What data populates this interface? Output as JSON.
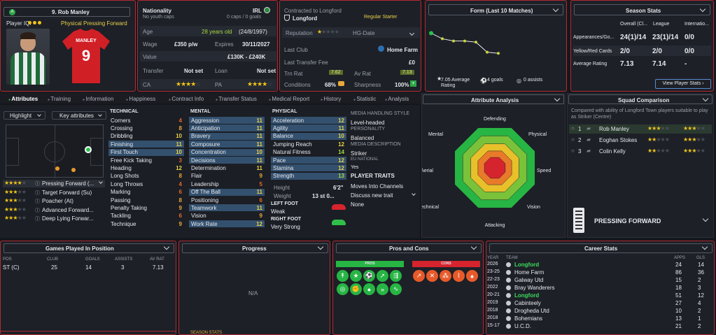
{
  "header": {
    "name": "9. Rob Manley",
    "number": "9",
    "shirt_name": "MANLEY",
    "player_iq": "Player IQ:",
    "role": "Physical Pressing Forward"
  },
  "bio": {
    "nationality_label": "Nationality",
    "nationality": "IRL",
    "caps": "0 caps / 0 goals",
    "youth_caps": "No youth caps",
    "age_label": "Age",
    "age": "28 years old",
    "dob": "(24/8/1997)",
    "wage_label": "Wage",
    "wage": "£350 p/w",
    "expires_label": "Expires",
    "expires": "30/11/2027",
    "value_label": "Value",
    "value": "£130K - £240K",
    "transfer_label": "Transfer",
    "transfer": "Not set",
    "loan_label": "Loan",
    "loan": "Not set",
    "ca_label": "CA",
    "pa_label": "PA"
  },
  "contract": {
    "title": "Contracted to Longford",
    "club": "Longford",
    "status": "Regular Starter",
    "reputation_label": "Reputation",
    "hg_label": "HG-Date",
    "last_club_label": "Last Club",
    "last_club": "Home Farm",
    "fee_label": "Last Transfer Fee",
    "fee": "£0",
    "trn_label": "Trn Rat",
    "trn": "7.62",
    "av_label": "Av Rat",
    "av": "7.13",
    "cond_label": "Conditions",
    "cond": "68%",
    "sharp_label": "Sharpness",
    "sharp": "100%"
  },
  "form": {
    "title": "Form (Last 10 Matches)",
    "avg": "7.05 Average Rating",
    "goals": "4 goals",
    "assists": "0 assists",
    "ratings": [
      8.1,
      7.6,
      7.4,
      7.4,
      7.3,
      6.4,
      6.3
    ]
  },
  "season": {
    "title": "Season Stats",
    "col1": "Overall (Cl...",
    "col2": "League",
    "col3": "Internatio...",
    "rows": [
      {
        "label": "Appearances/Go...",
        "a": "24(1)/14",
        "b": "23(1)/14",
        "c": "0/0"
      },
      {
        "label": "Yellow/Red Cards",
        "a": "2/0",
        "b": "2/0",
        "c": "0/0"
      },
      {
        "label": "Average Rating",
        "a": "7.13",
        "b": "7.14",
        "c": "-"
      }
    ],
    "button": "View Player Stats"
  },
  "tabs": [
    "Attributes",
    "Training",
    "Information",
    "Happiness",
    "Contract Info",
    "Transfer Status",
    "Medical Report",
    "History",
    "Statistic",
    "Analysis"
  ],
  "filters": {
    "highlight": "Highlight",
    "key": "Key attributes"
  },
  "technical": {
    "title": "TECHNICAL",
    "items": [
      [
        "Corners",
        "4"
      ],
      [
        "Crossing",
        "8"
      ],
      [
        "Dribbling",
        "10"
      ],
      [
        "Finishing",
        "11"
      ],
      [
        "First Touch",
        "10"
      ],
      [
        "Free Kick Taking",
        "3"
      ],
      [
        "Heading",
        "12"
      ],
      [
        "Long Shots",
        "8"
      ],
      [
        "Long Throws",
        "4"
      ],
      [
        "Marking",
        "6"
      ],
      [
        "Passing",
        "8"
      ],
      [
        "Penalty Taking",
        "9"
      ],
      [
        "Tackling",
        "6"
      ],
      [
        "Technique",
        "9"
      ]
    ]
  },
  "mental": {
    "title": "MENTAL",
    "items": [
      [
        "Aggression",
        "11"
      ],
      [
        "Anticipation",
        "11"
      ],
      [
        "Bravery",
        "11"
      ],
      [
        "Composure",
        "11"
      ],
      [
        "Concentration",
        "10"
      ],
      [
        "Decisions",
        "11"
      ],
      [
        "Determination",
        "11"
      ],
      [
        "Flair",
        "9"
      ],
      [
        "Leadership",
        "5"
      ],
      [
        "Off The Ball",
        "11"
      ],
      [
        "Positioning",
        "6"
      ],
      [
        "Teamwork",
        "11"
      ],
      [
        "Vision",
        "9"
      ],
      [
        "Work Rate",
        "12"
      ]
    ]
  },
  "physical": {
    "title": "PHYSICAL",
    "items": [
      [
        "Acceleration",
        "12"
      ],
      [
        "Agility",
        "11"
      ],
      [
        "Balance",
        "10"
      ],
      [
        "Jumping Reach",
        "12"
      ],
      [
        "Natural Fitness",
        "14"
      ],
      [
        "Pace",
        "12"
      ],
      [
        "Stamina",
        "12"
      ],
      [
        "Strength",
        "13"
      ]
    ]
  },
  "body": {
    "height_label": "Height",
    "height": "6'2\"",
    "weight_label": "Weight",
    "weight": "13 st 0...",
    "left_foot_label": "LEFT FOOT",
    "left_foot": "Weak",
    "right_foot_label": "RIGHT FOOT",
    "right_foot": "Very Strong"
  },
  "media": {
    "style_label": "MEDIA HANDLING STYLE",
    "style": "Level-headed",
    "personality_label": "PERSONALITY",
    "personality": "Balanced",
    "desc_label": "MEDIA DESCRIPTION",
    "desc": "Striker",
    "eu_label": "EU NATIONAL",
    "eu": "Yes",
    "traits_label": "PLAYER TRAITS",
    "traits": [
      "Moves Into Channels",
      "Discuss new trait",
      "None"
    ]
  },
  "roles": [
    "Pressing Forward (...",
    "Target Forward (Su)",
    "Poacher (At)",
    "Advanced Forward...",
    "Deep Lying Forwar..."
  ],
  "analysis": {
    "title": "Attribute Analysis",
    "labels": [
      "Defending",
      "Physical",
      "Speed",
      "Vision",
      "Attacking",
      "Technical",
      "Aerial",
      "Mental"
    ]
  },
  "squad": {
    "title": "Squad Comparison",
    "desc": "Compared with ability of Longford Town players suitable to play as Striker (Centre)",
    "players": [
      {
        "rank": "1",
        "name": "Rob Manley"
      },
      {
        "rank": "2",
        "name": "Eoghan Stokes"
      },
      {
        "rank": "3",
        "name": "Colin Kelly"
      }
    ],
    "role": "PRESSING FORWARD"
  },
  "games": {
    "title": "Games Played In Position",
    "cols": [
      "POS",
      "CLUB",
      "GOALS",
      "ASSISTS",
      "AV RAT"
    ],
    "row": [
      "ST (C)",
      "25",
      "14",
      "3",
      "7.13"
    ]
  },
  "progress": {
    "title": "Progress",
    "na": "N/A"
  },
  "proscons": {
    "title": "Pros and Cons",
    "pros": "PROS",
    "cons": "CONS"
  },
  "career": {
    "title": "Career Stats",
    "cols": [
      "YEAR",
      "TEAM",
      "APPS",
      "GLS"
    ],
    "rows": [
      [
        "2026",
        "Longford",
        "24",
        "14"
      ],
      [
        "23-25",
        "Home Farm",
        "86",
        "36"
      ],
      [
        "22-23",
        "Galway Utd",
        "15",
        "2"
      ],
      [
        "2022",
        "Bray Wanderers",
        "18",
        "3"
      ],
      [
        "20-21",
        "Longford",
        "51",
        "12"
      ],
      [
        "2019",
        "Cabinteely",
        "27",
        "4"
      ],
      [
        "2018",
        "Drogheda Utd",
        "10",
        "2"
      ],
      [
        "2018",
        "Bohemians",
        "13",
        "1"
      ],
      [
        "15-17",
        "U.C.D.",
        "21",
        "2"
      ]
    ]
  },
  "footer": {
    "season_stats": "SEASON STATS"
  }
}
